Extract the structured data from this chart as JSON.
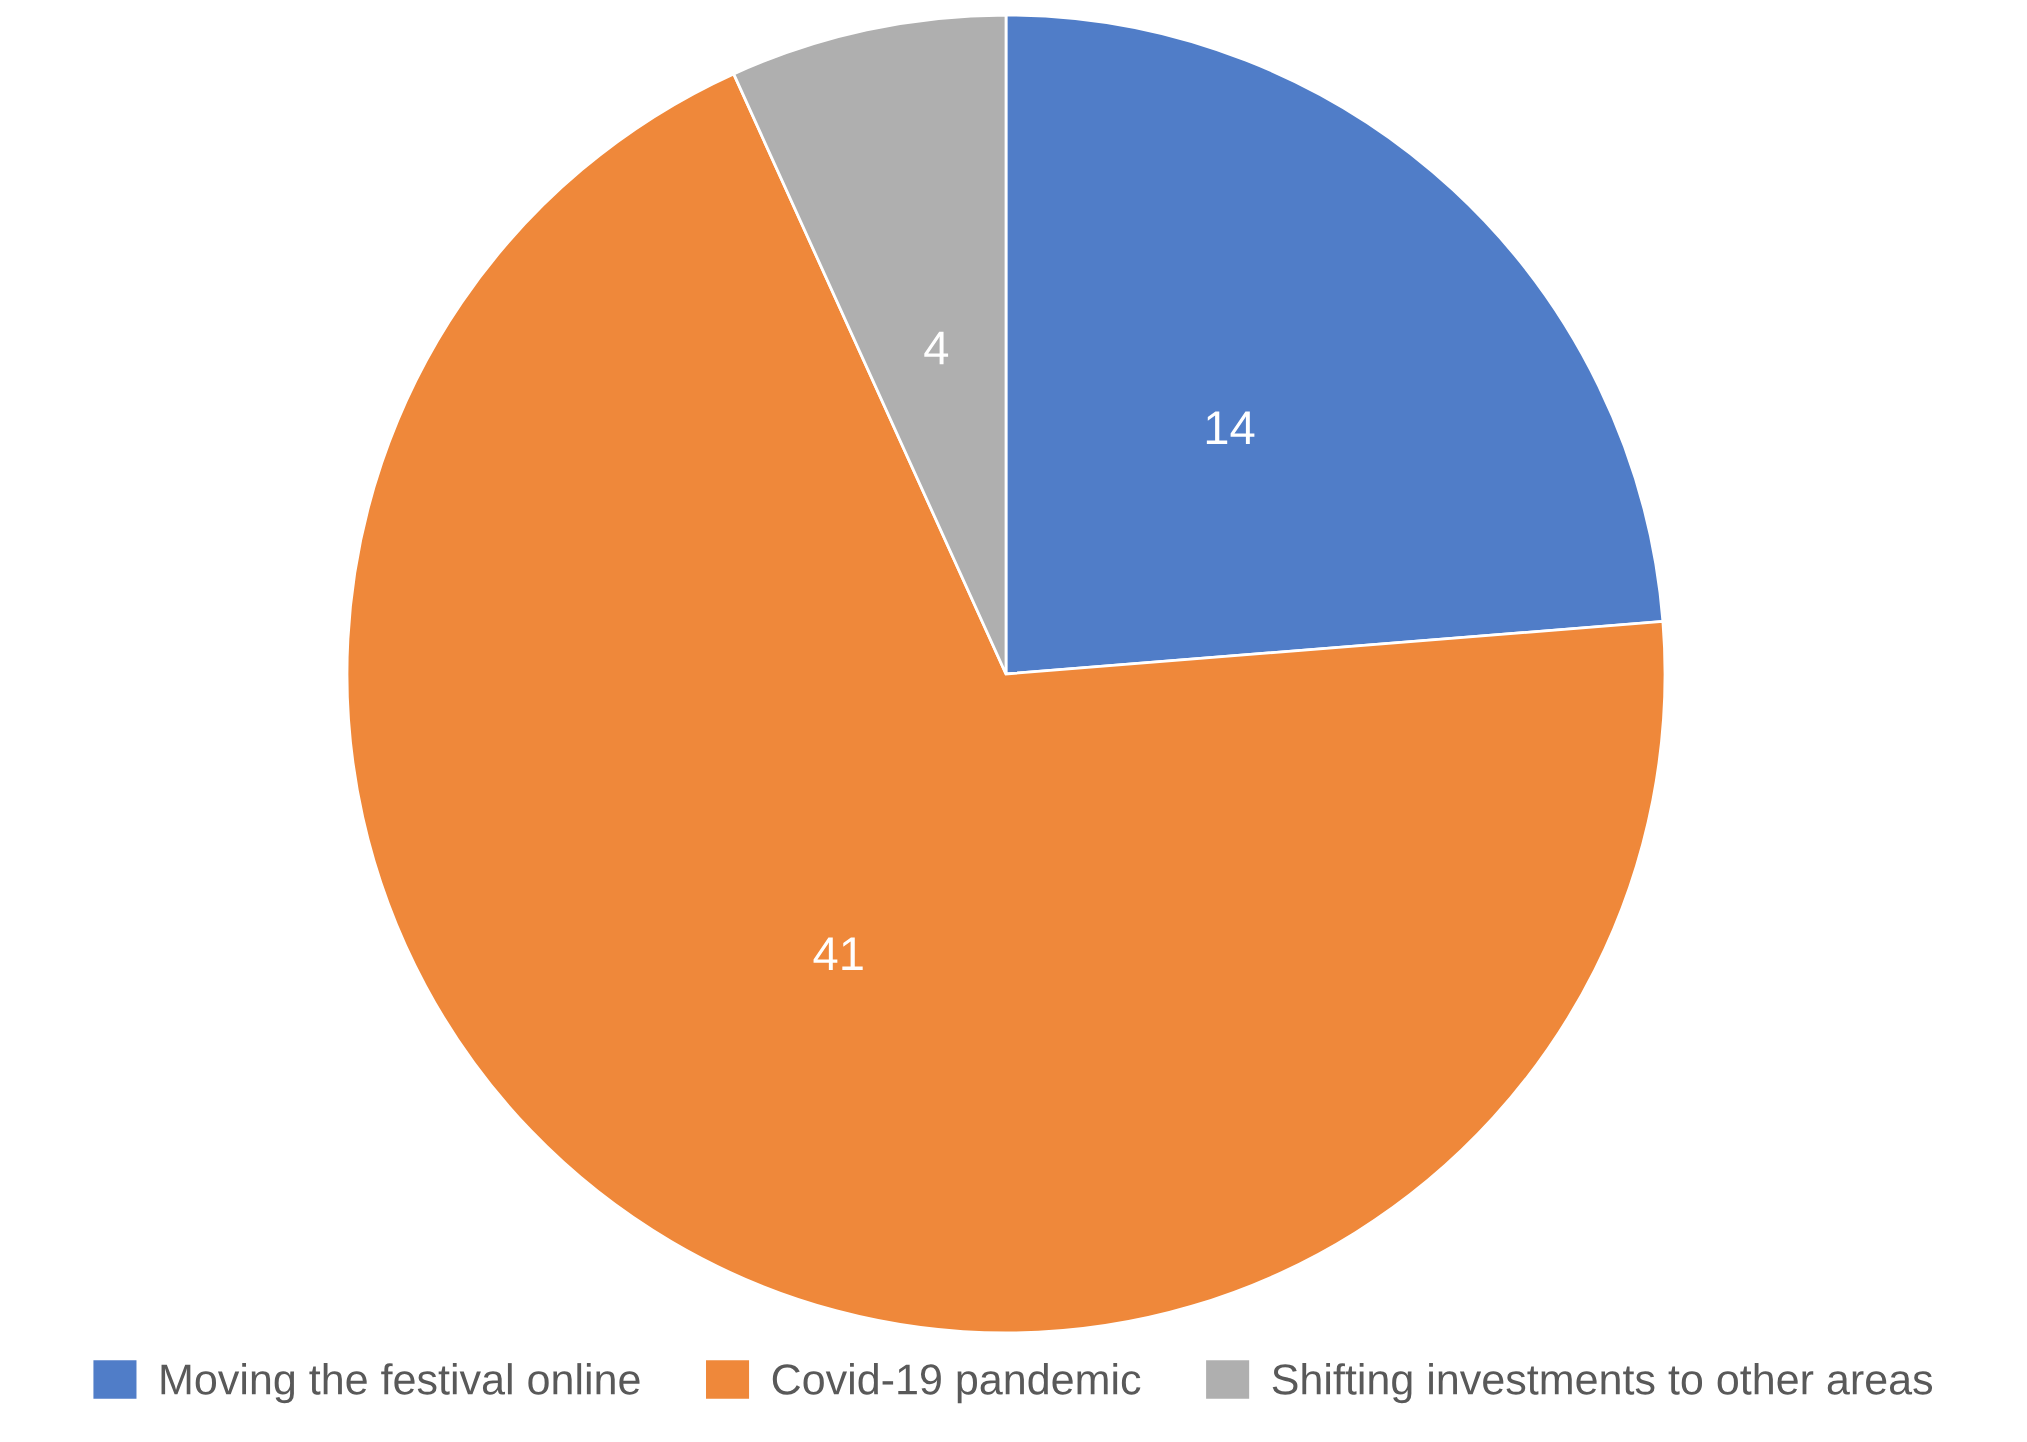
{
  "chart_data": {
    "type": "pie",
    "categories": [
      "Moving the festival online",
      "Covid-19 pandemic",
      "Shifting investments to other areas"
    ],
    "values": [
      14,
      41,
      4
    ],
    "colors": [
      "#507dc8",
      "#ef883a",
      "#afafaf"
    ],
    "data_labels": true,
    "legend": "bottom"
  }
}
